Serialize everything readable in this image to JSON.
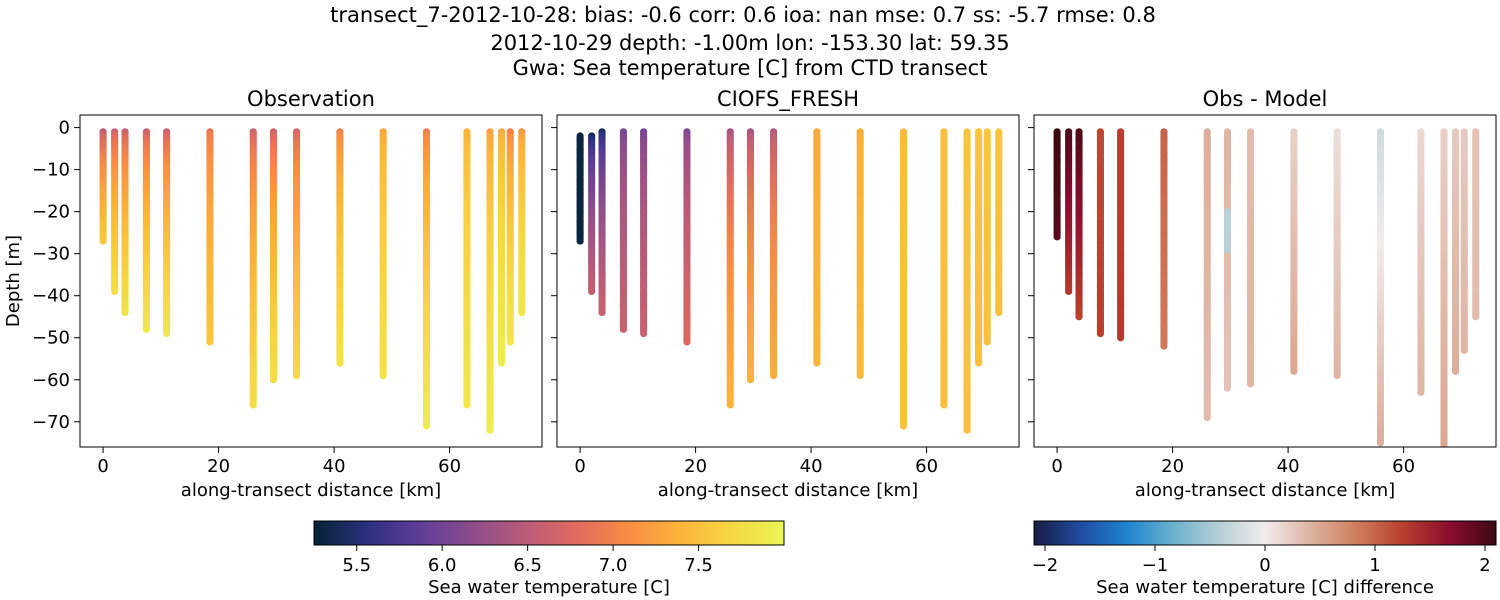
{
  "figure": {
    "title_lines": [
      "transect_7-2012-10-28: bias: -0.6  corr: 0.6  ioa: nan  mse: 0.7  ss: -5.7  rmse: 0.8",
      "2012-10-29 depth: -1.00m lon: -153.30 lat: 59.35",
      "Gwa: Sea temperature [C] from CTD transect"
    ]
  },
  "chart_data": [
    {
      "type": "scatter",
      "title": "Observation",
      "xlabel": "along-transect distance [km]",
      "ylabel": "Depth [m]",
      "xlim": [
        -4,
        76
      ],
      "ylim": [
        -76,
        3
      ],
      "xticks": [
        0,
        20,
        40,
        60
      ],
      "yticks": [
        0,
        -10,
        -20,
        -30,
        -40,
        -50,
        -60,
        -70
      ],
      "xtick_labels": [
        "0",
        "20",
        "40",
        "60"
      ],
      "ytick_labels": [
        "0",
        "−10",
        "−20",
        "−30",
        "−40",
        "−50",
        "−60",
        "−70"
      ],
      "colormap": "thermal",
      "casts": [
        {
          "x": 0.0,
          "max_depth": -27,
          "t_top": 6.45,
          "t_bottom": 7.55
        },
        {
          "x": 2.0,
          "max_depth": -39,
          "t_top": 6.55,
          "t_bottom": 7.75
        },
        {
          "x": 3.8,
          "max_depth": -44,
          "t_top": 6.55,
          "t_bottom": 7.8
        },
        {
          "x": 7.5,
          "max_depth": -48,
          "t_top": 6.55,
          "t_bottom": 7.85
        },
        {
          "x": 11.0,
          "max_depth": -49,
          "t_top": 6.55,
          "t_bottom": 7.85
        },
        {
          "x": 18.5,
          "max_depth": -51,
          "t_top": 6.85,
          "t_bottom": 7.55
        },
        {
          "x": 26.0,
          "max_depth": -66,
          "t_top": 6.6,
          "t_bottom": 7.75
        },
        {
          "x": 29.5,
          "max_depth": -60,
          "t_top": 6.6,
          "t_bottom": 7.75
        },
        {
          "x": 33.5,
          "max_depth": -59,
          "t_top": 6.65,
          "t_bottom": 7.7
        },
        {
          "x": 41.0,
          "max_depth": -56,
          "t_top": 6.95,
          "t_bottom": 7.8
        },
        {
          "x": 48.5,
          "max_depth": -59,
          "t_top": 7.25,
          "t_bottom": 7.8
        },
        {
          "x": 56.0,
          "max_depth": -71,
          "t_top": 6.9,
          "t_bottom": 7.9
        },
        {
          "x": 63.0,
          "max_depth": -66,
          "t_top": 7.35,
          "t_bottom": 7.85
        },
        {
          "x": 67.0,
          "max_depth": -72,
          "t_top": 7.2,
          "t_bottom": 7.9
        },
        {
          "x": 69.0,
          "max_depth": -56,
          "t_top": 7.3,
          "t_bottom": 7.9
        },
        {
          "x": 70.5,
          "max_depth": -51,
          "t_top": 6.95,
          "t_bottom": 7.85
        },
        {
          "x": 72.5,
          "max_depth": -44,
          "t_top": 7.15,
          "t_bottom": 7.85
        }
      ]
    },
    {
      "type": "scatter",
      "title": "CIOFS_FRESH",
      "xlabel": "along-transect distance [km]",
      "xlim": [
        -4,
        76
      ],
      "ylim": [
        -76,
        3
      ],
      "xticks": [
        0,
        20,
        40,
        60
      ],
      "xtick_labels": [
        "0",
        "20",
        "40",
        "60"
      ],
      "colormap": "thermal",
      "casts": [
        {
          "x": 0.0,
          "min_depth": -2,
          "max_depth": -27,
          "t_top": 5.3,
          "t_bottom": 5.3
        },
        {
          "x": 2.0,
          "min_depth": -2,
          "max_depth": -39,
          "t_top": 5.35,
          "t_bottom": 6.55
        },
        {
          "x": 3.8,
          "min_depth": -1,
          "max_depth": -44,
          "t_top": 5.4,
          "t_bottom": 6.6
        },
        {
          "x": 7.5,
          "min_depth": -1,
          "max_depth": -48,
          "t_top": 6.0,
          "t_bottom": 6.6
        },
        {
          "x": 11.0,
          "min_depth": -1,
          "max_depth": -49,
          "t_top": 6.0,
          "t_bottom": 6.6
        },
        {
          "x": 18.5,
          "min_depth": -1,
          "max_depth": -51,
          "t_top": 6.05,
          "t_bottom": 6.75
        },
        {
          "x": 26.0,
          "min_depth": -1,
          "max_depth": -66,
          "t_top": 6.3,
          "t_bottom": 7.4
        },
        {
          "x": 29.5,
          "min_depth": -1,
          "max_depth": -60,
          "t_top": 6.3,
          "t_bottom": 7.4
        },
        {
          "x": 33.5,
          "min_depth": -1,
          "max_depth": -59,
          "t_top": 6.4,
          "t_bottom": 7.35
        },
        {
          "x": 41.0,
          "min_depth": -1,
          "max_depth": -56,
          "t_top": 7.3,
          "t_bottom": 7.4
        },
        {
          "x": 48.5,
          "min_depth": -1,
          "max_depth": -59,
          "t_top": 7.35,
          "t_bottom": 7.45
        },
        {
          "x": 56.0,
          "min_depth": -1,
          "max_depth": -71,
          "t_top": 7.45,
          "t_bottom": 7.5
        },
        {
          "x": 63.0,
          "min_depth": -1,
          "max_depth": -66,
          "t_top": 7.5,
          "t_bottom": 7.5
        },
        {
          "x": 67.0,
          "min_depth": -1,
          "max_depth": -72,
          "t_top": 7.55,
          "t_bottom": 7.5
        },
        {
          "x": 69.0,
          "min_depth": -1,
          "max_depth": -56,
          "t_top": 7.55,
          "t_bottom": 7.5
        },
        {
          "x": 70.5,
          "min_depth": -1,
          "max_depth": -51,
          "t_top": 7.55,
          "t_bottom": 7.5
        },
        {
          "x": 72.5,
          "min_depth": -1,
          "max_depth": -44,
          "t_top": 7.55,
          "t_bottom": 7.5
        }
      ]
    },
    {
      "type": "scatter",
      "title": "Obs - Model",
      "xlabel": "along-transect distance [km]",
      "xlim": [
        -4,
        76
      ],
      "ylim": [
        -76,
        3
      ],
      "xticks": [
        0,
        20,
        40,
        60
      ],
      "xtick_labels": [
        "0",
        "20",
        "40",
        "60"
      ],
      "colormap": "balance",
      "casts": [
        {
          "x": 0.0,
          "max_depth": -26,
          "d_top": 2.1,
          "d_bottom": 1.95
        },
        {
          "x": 2.0,
          "max_depth": -39,
          "d_top": 2.0,
          "d_bottom": 1.3
        },
        {
          "x": 3.8,
          "max_depth": -45,
          "d_top": 2.0,
          "d_bottom": 1.25
        },
        {
          "x": 7.5,
          "max_depth": -49,
          "d_top": 1.2,
          "d_bottom": 1.25
        },
        {
          "x": 11.0,
          "max_depth": -50,
          "d_top": 1.25,
          "d_bottom": 1.3
        },
        {
          "x": 18.5,
          "max_depth": -52,
          "d_top": 1.0,
          "d_bottom": 0.85
        },
        {
          "x": 26.0,
          "max_depth": -69,
          "d_top": 0.45,
          "d_bottom": 0.35
        },
        {
          "x": 29.5,
          "max_depth": -62,
          "d_top": 0.4,
          "d_bottom": 0.3,
          "mid_value": -0.4
        },
        {
          "x": 33.5,
          "max_depth": -61,
          "d_top": 0.35,
          "d_bottom": 0.4
        },
        {
          "x": 41.0,
          "max_depth": -58,
          "d_top": 0.2,
          "d_bottom": 0.5
        },
        {
          "x": 48.5,
          "max_depth": -59,
          "d_top": 0.1,
          "d_bottom": 0.4
        },
        {
          "x": 56.0,
          "max_depth": -75,
          "d_top": -0.25,
          "d_bottom": 0.45
        },
        {
          "x": 63.0,
          "max_depth": -63,
          "d_top": 0.15,
          "d_bottom": 0.4
        },
        {
          "x": 67.0,
          "max_depth": -76,
          "d_top": 0.2,
          "d_bottom": 0.5
        },
        {
          "x": 69.0,
          "max_depth": -58,
          "d_top": 0.25,
          "d_bottom": 0.45
        },
        {
          "x": 70.5,
          "max_depth": -53,
          "d_top": 0.25,
          "d_bottom": 0.4
        },
        {
          "x": 72.5,
          "max_depth": -45,
          "d_top": 0.3,
          "d_bottom": 0.35
        }
      ]
    }
  ],
  "colorbars": [
    {
      "label": "Sea water temperature [C]",
      "vmin": 5.25,
      "vmax": 8.0,
      "ticks": [
        5.5,
        6.0,
        6.5,
        7.0,
        7.5
      ],
      "tick_labels": [
        "5.5",
        "6.0",
        "6.5",
        "7.0",
        "7.5"
      ],
      "colormap": "thermal"
    },
    {
      "label": "Sea water temperature [C] difference",
      "vmin": -2.1,
      "vmax": 2.1,
      "ticks": [
        -2,
        -1,
        0,
        1,
        2
      ],
      "tick_labels": [
        "−2",
        "−1",
        "0",
        "1",
        "2"
      ],
      "colormap": "balance"
    }
  ],
  "colormaps": {
    "thermal": [
      "#042333",
      "#2b2f7e",
      "#5d3d98",
      "#8b4c8c",
      "#b85b79",
      "#df6a5f",
      "#f98c43",
      "#fbb33a",
      "#f6d743",
      "#e9f654"
    ],
    "balance": [
      "#181c43",
      "#1f4ca0",
      "#1e83cf",
      "#6ab1cd",
      "#b6cfd5",
      "#f1ecec",
      "#deb2a0",
      "#cf7c5c",
      "#b83e2d",
      "#8b0d2f",
      "#3c0912"
    ]
  }
}
